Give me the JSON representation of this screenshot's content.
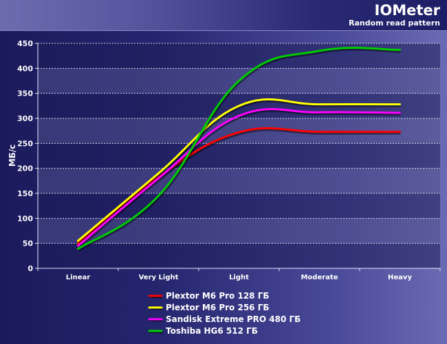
{
  "header": {
    "title": "IOMeter",
    "subtitle": "Random read pattern"
  },
  "chart_data": {
    "type": "line",
    "title": "IOMeter",
    "subtitle": "Random read pattern",
    "xlabel": "",
    "ylabel": "МБ/с",
    "ylim": [
      0,
      450
    ],
    "yticks": [
      0,
      50,
      100,
      150,
      200,
      250,
      300,
      350,
      400,
      450
    ],
    "grid": true,
    "legend_position": "bottom",
    "categories": [
      "Linear",
      "Very Light",
      "Light",
      "Moderate",
      "Heavy"
    ],
    "series": [
      {
        "name": "Plextor M6 Pro 128 ГБ",
        "color": "#ff0000",
        "values": [
          50,
          183,
          272,
          273,
          273
        ]
      },
      {
        "name": "Plextor M6 Pro 256 ГБ",
        "color": "#ffff00",
        "values": [
          55,
          190,
          325,
          328,
          328
        ]
      },
      {
        "name": "Sandisk Extreme PRO 480 ГБ",
        "color": "#ff00ff",
        "values": [
          45,
          180,
          305,
          312,
          311
        ]
      },
      {
        "name": "Toshiba HG6 512 ГБ",
        "color": "#00cc00",
        "values": [
          39,
          145,
          375,
          435,
          437
        ]
      }
    ]
  }
}
